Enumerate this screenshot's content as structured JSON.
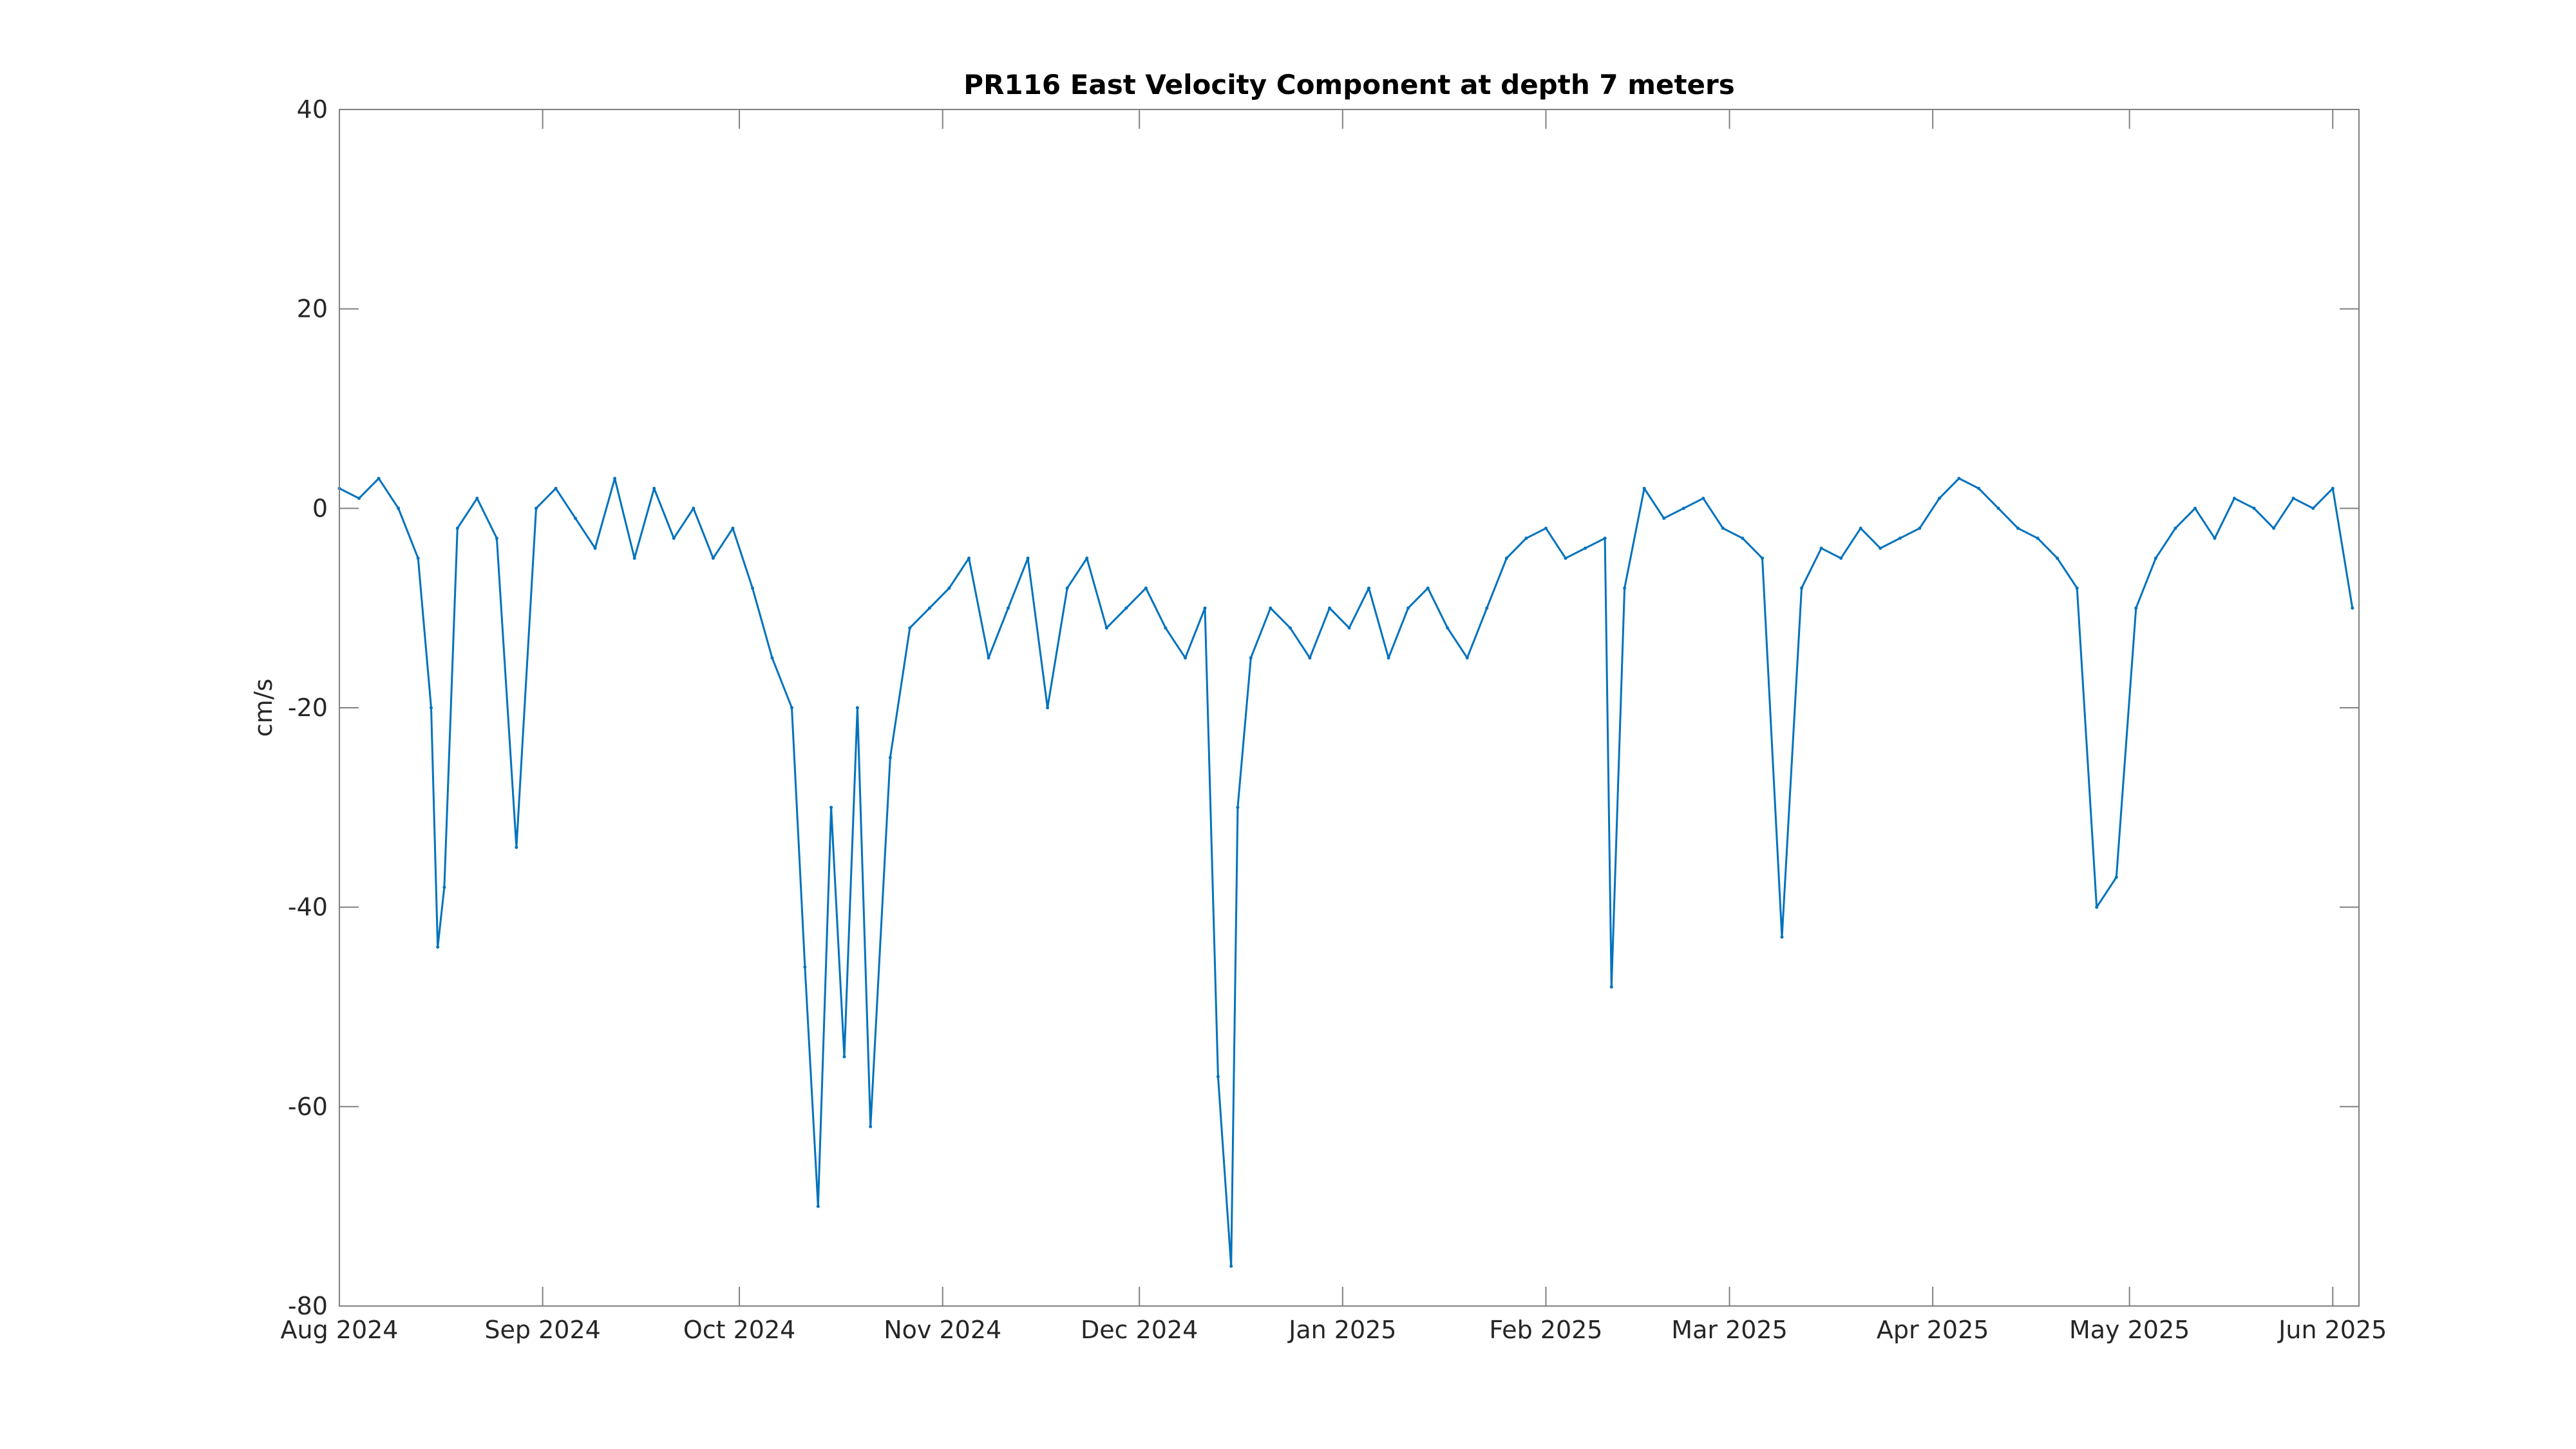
{
  "chart_data": {
    "type": "line",
    "title": "PR116 East Velocity Component at depth 7 meters",
    "xlabel": "",
    "ylabel": "cm/s",
    "xlim": [
      "2024-08-01",
      "2025-06-05"
    ],
    "ylim": [
      -80,
      40
    ],
    "x_ticks": [
      {
        "date": "2024-08-01",
        "label": "Aug 2024"
      },
      {
        "date": "2024-09-01",
        "label": "Sep 2024"
      },
      {
        "date": "2024-10-01",
        "label": "Oct 2024"
      },
      {
        "date": "2024-11-01",
        "label": "Nov 2024"
      },
      {
        "date": "2024-12-01",
        "label": "Dec 2024"
      },
      {
        "date": "2025-01-01",
        "label": "Jan 2025"
      },
      {
        "date": "2025-02-01",
        "label": "Feb 2025"
      },
      {
        "date": "2025-03-01",
        "label": "Mar 2025"
      },
      {
        "date": "2025-04-01",
        "label": "Apr 2025"
      },
      {
        "date": "2025-05-01",
        "label": "May 2025"
      },
      {
        "date": "2025-06-01",
        "label": "Jun 2025"
      }
    ],
    "y_ticks": [
      {
        "value": 40,
        "label": "40"
      },
      {
        "value": 20,
        "label": "20"
      },
      {
        "value": 0,
        "label": "0"
      },
      {
        "value": -20,
        "label": "-20"
      },
      {
        "value": -40,
        "label": "-40"
      },
      {
        "value": -60,
        "label": "-60"
      },
      {
        "value": -80,
        "label": "-80"
      }
    ],
    "grid": false,
    "series_color": "#0072BD",
    "series": [
      {
        "x": [
          "2024-08-01",
          "2024-08-04",
          "2024-08-07",
          "2024-08-10",
          "2024-08-13",
          "2024-08-15",
          "2024-08-16",
          "2024-08-17",
          "2024-08-19",
          "2024-08-22",
          "2024-08-25",
          "2024-08-28",
          "2024-08-31",
          "2024-09-03",
          "2024-09-06",
          "2024-09-09",
          "2024-09-12",
          "2024-09-15",
          "2024-09-18",
          "2024-09-21",
          "2024-09-24",
          "2024-09-27",
          "2024-09-30",
          "2024-10-03",
          "2024-10-06",
          "2024-10-09",
          "2024-10-11",
          "2024-10-13",
          "2024-10-15",
          "2024-10-17",
          "2024-10-19",
          "2024-10-21",
          "2024-10-24",
          "2024-10-27",
          "2024-10-30",
          "2024-11-02",
          "2024-11-05",
          "2024-11-08",
          "2024-11-11",
          "2024-11-14",
          "2024-11-17",
          "2024-11-20",
          "2024-11-23",
          "2024-11-26",
          "2024-11-29",
          "2024-12-02",
          "2024-12-05",
          "2024-12-08",
          "2024-12-11",
          "2024-12-13",
          "2024-12-15",
          "2024-12-16",
          "2024-12-18",
          "2024-12-21",
          "2024-12-24",
          "2024-12-27",
          "2024-12-30",
          "2025-01-02",
          "2025-01-05",
          "2025-01-08",
          "2025-01-11",
          "2025-01-14",
          "2025-01-17",
          "2025-01-20",
          "2025-01-23",
          "2025-01-26",
          "2025-01-29",
          "2025-02-01",
          "2025-02-04",
          "2025-02-07",
          "2025-02-10",
          "2025-02-11",
          "2025-02-13",
          "2025-02-16",
          "2025-02-19",
          "2025-02-22",
          "2025-02-25",
          "2025-02-28",
          "2025-03-03",
          "2025-03-06",
          "2025-03-09",
          "2025-03-12",
          "2025-03-15",
          "2025-03-18",
          "2025-03-21",
          "2025-03-24",
          "2025-03-27",
          "2025-03-30",
          "2025-04-02",
          "2025-04-05",
          "2025-04-08",
          "2025-04-11",
          "2025-04-14",
          "2025-04-17",
          "2025-04-20",
          "2025-04-23",
          "2025-04-26",
          "2025-04-29",
          "2025-05-02",
          "2025-05-05",
          "2025-05-08",
          "2025-05-11",
          "2025-05-14",
          "2025-05-17",
          "2025-05-20",
          "2025-05-23",
          "2025-05-26",
          "2025-05-29",
          "2025-06-01",
          "2025-06-04"
        ],
        "y": [
          2,
          1,
          3,
          0,
          -5,
          -20,
          -44,
          -38,
          -2,
          1,
          -3,
          -34,
          0,
          2,
          -1,
          -4,
          3,
          -5,
          2,
          -3,
          0,
          -5,
          -2,
          -8,
          -15,
          -20,
          -46,
          -70,
          -30,
          -55,
          -20,
          -62,
          -25,
          -12,
          -10,
          -8,
          -5,
          -15,
          -10,
          -5,
          -20,
          -8,
          -5,
          -12,
          -10,
          -8,
          -12,
          -15,
          -10,
          -57,
          -76,
          -30,
          -15,
          -10,
          -12,
          -15,
          -10,
          -12,
          -8,
          -15,
          -10,
          -8,
          -12,
          -15,
          -10,
          -5,
          -3,
          -2,
          -5,
          -4,
          -3,
          -48,
          -8,
          2,
          -1,
          0,
          1,
          -2,
          -3,
          -5,
          -43,
          -8,
          -4,
          -5,
          -2,
          -4,
          -3,
          -2,
          1,
          3,
          2,
          0,
          -2,
          -3,
          -5,
          -8,
          -40,
          -37,
          -10,
          -5,
          -2,
          0,
          -3,
          1,
          0,
          -2,
          1,
          0,
          2,
          -10
        ]
      }
    ]
  }
}
